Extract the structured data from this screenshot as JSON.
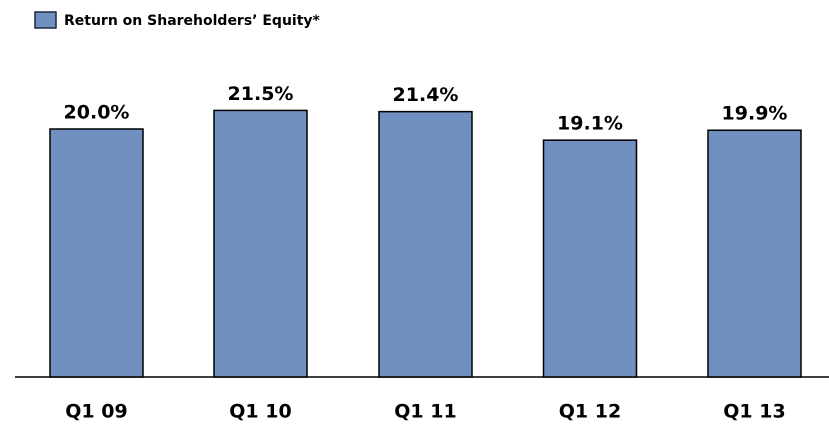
{
  "chart_data": {
    "type": "bar",
    "categories": [
      "Q1 09",
      "Q1 10",
      "Q1 11",
      "Q1 12",
      "Q1 13"
    ],
    "series": [
      {
        "name": "Return on Shareholders’ Equity*",
        "color": "#7090c0",
        "values": [
          20.0,
          21.5,
          21.4,
          19.1,
          19.9
        ],
        "value_labels": [
          "20.0%",
          "21.5%",
          "21.4%",
          "19.1%",
          "19.9%"
        ]
      }
    ],
    "ylim": [
      0,
      30
    ],
    "legend": "top-left"
  }
}
